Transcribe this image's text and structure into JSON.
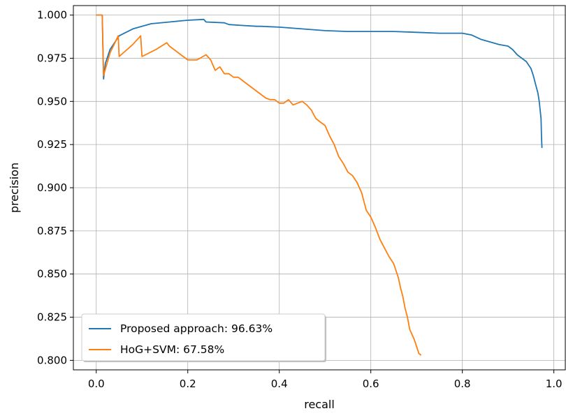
{
  "chart_data": {
    "type": "line",
    "title": "",
    "xlabel": "recall",
    "ylabel": "precision",
    "xlim": [
      -0.05,
      1.025
    ],
    "ylim": [
      0.7945,
      1.0055
    ],
    "xticks": [
      0.0,
      0.2,
      0.4,
      0.6,
      0.8,
      1.0
    ],
    "xtick_labels": [
      "0.0",
      "0.2",
      "0.4",
      "0.6",
      "0.8",
      "1.0"
    ],
    "yticks": [
      0.8,
      0.825,
      0.85,
      0.875,
      0.9,
      0.925,
      0.95,
      0.975,
      1.0
    ],
    "ytick_labels": [
      "0.800",
      "0.825",
      "0.850",
      "0.875",
      "0.900",
      "0.925",
      "0.950",
      "0.975",
      "1.000"
    ],
    "grid": true,
    "legend_position": "lower-left",
    "series": [
      {
        "name": "Proposed approach: 96.63%",
        "color": "#1f77b4",
        "x": [
          0.0,
          0.013,
          0.016,
          0.02,
          0.03,
          0.05,
          0.08,
          0.12,
          0.16,
          0.2,
          0.235,
          0.24,
          0.28,
          0.29,
          0.32,
          0.35,
          0.36,
          0.4,
          0.45,
          0.5,
          0.55,
          0.6,
          0.65,
          0.7,
          0.75,
          0.8,
          0.82,
          0.84,
          0.86,
          0.88,
          0.9,
          0.91,
          0.92,
          0.93,
          0.94,
          0.95,
          0.955,
          0.96,
          0.965,
          0.968,
          0.97,
          0.972,
          0.973,
          0.974
        ],
        "y": [
          1.0,
          1.0,
          0.963,
          0.972,
          0.98,
          0.988,
          0.992,
          0.995,
          0.996,
          0.997,
          0.9975,
          0.996,
          0.9955,
          0.9945,
          0.994,
          0.9935,
          0.9935,
          0.993,
          0.992,
          0.991,
          0.9905,
          0.9905,
          0.9905,
          0.99,
          0.9895,
          0.9895,
          0.9885,
          0.986,
          0.9845,
          0.983,
          0.982,
          0.98,
          0.977,
          0.975,
          0.973,
          0.969,
          0.965,
          0.96,
          0.955,
          0.95,
          0.945,
          0.94,
          0.93,
          0.923
        ]
      },
      {
        "name": "HoG+SVM: 67.58%",
        "color": "#ff7f0e",
        "x": [
          0.0,
          0.013,
          0.016,
          0.03,
          0.048,
          0.05,
          0.08,
          0.097,
          0.1,
          0.13,
          0.154,
          0.16,
          0.18,
          0.19,
          0.2,
          0.21,
          0.22,
          0.24,
          0.25,
          0.26,
          0.27,
          0.28,
          0.29,
          0.3,
          0.31,
          0.32,
          0.33,
          0.34,
          0.35,
          0.36,
          0.37,
          0.38,
          0.39,
          0.4,
          0.41,
          0.42,
          0.43,
          0.44,
          0.45,
          0.46,
          0.47,
          0.48,
          0.49,
          0.5,
          0.51,
          0.52,
          0.53,
          0.54,
          0.55,
          0.56,
          0.57,
          0.58,
          0.59,
          0.6,
          0.61,
          0.62,
          0.63,
          0.64,
          0.65,
          0.66,
          0.665,
          0.67,
          0.675,
          0.68,
          0.685,
          0.69,
          0.695,
          0.7,
          0.705,
          0.71
        ],
        "y": [
          1.0,
          1.0,
          0.965,
          0.978,
          0.988,
          0.976,
          0.983,
          0.988,
          0.976,
          0.98,
          0.984,
          0.982,
          0.978,
          0.976,
          0.974,
          0.974,
          0.974,
          0.977,
          0.974,
          0.968,
          0.97,
          0.966,
          0.966,
          0.964,
          0.964,
          0.962,
          0.96,
          0.958,
          0.956,
          0.954,
          0.952,
          0.951,
          0.951,
          0.949,
          0.949,
          0.951,
          0.948,
          0.949,
          0.95,
          0.948,
          0.945,
          0.94,
          0.938,
          0.936,
          0.93,
          0.925,
          0.918,
          0.914,
          0.909,
          0.907,
          0.903,
          0.897,
          0.887,
          0.883,
          0.877,
          0.87,
          0.865,
          0.86,
          0.856,
          0.848,
          0.842,
          0.837,
          0.83,
          0.825,
          0.818,
          0.815,
          0.812,
          0.808,
          0.804,
          0.803
        ]
      }
    ]
  }
}
